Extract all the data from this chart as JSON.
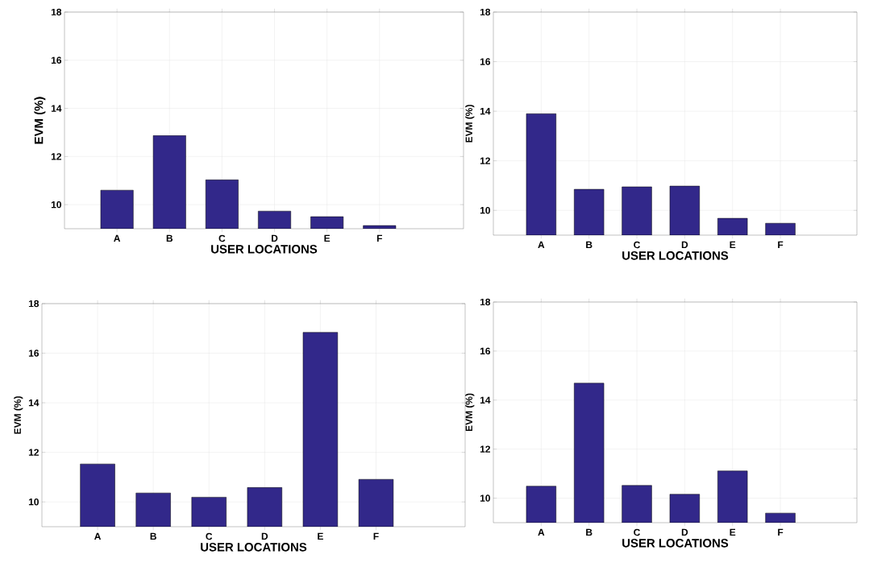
{
  "chart_data": [
    {
      "type": "bar",
      "categories": [
        "A",
        "B",
        "C",
        "D",
        "E",
        "F"
      ],
      "values": [
        10.6,
        12.87,
        11.03,
        9.73,
        9.5,
        9.13
      ],
      "color": "#32288a",
      "xlabel": "USER LOCATIONS",
      "ylabel": "EVM (%)",
      "ylim": [
        9,
        18
      ],
      "yticks": [
        10,
        12,
        14,
        16,
        18
      ],
      "grid": true
    },
    {
      "type": "bar",
      "categories": [
        "A",
        "B",
        "C",
        "D",
        "E",
        "F"
      ],
      "values": [
        13.9,
        10.85,
        10.95,
        10.98,
        9.68,
        9.48
      ],
      "color": "#32288a",
      "xlabel": "USER LOCATIONS",
      "ylabel": "EVM (%)",
      "ylim": [
        9,
        18
      ],
      "yticks": [
        10,
        12,
        14,
        16,
        18
      ],
      "grid": true
    },
    {
      "type": "bar",
      "categories": [
        "A",
        "B",
        "C",
        "D",
        "E",
        "F"
      ],
      "values": [
        11.53,
        10.36,
        10.19,
        10.58,
        16.84,
        10.91
      ],
      "color": "#32288a",
      "xlabel": "USER LOCATIONS",
      "ylabel": "EVM (%)",
      "ylim": [
        9,
        18
      ],
      "yticks": [
        10,
        12,
        14,
        16,
        18
      ],
      "grid": true
    },
    {
      "type": "bar",
      "categories": [
        "A",
        "B",
        "C",
        "D",
        "E",
        "F"
      ],
      "values": [
        10.49,
        14.69,
        10.52,
        10.16,
        11.11,
        9.39
      ],
      "color": "#32288a",
      "xlabel": "USER LOCATIONS",
      "ylabel": "EVM (%)",
      "ylim": [
        9,
        18
      ],
      "yticks": [
        10,
        12,
        14,
        16,
        18
      ],
      "grid": true
    }
  ]
}
